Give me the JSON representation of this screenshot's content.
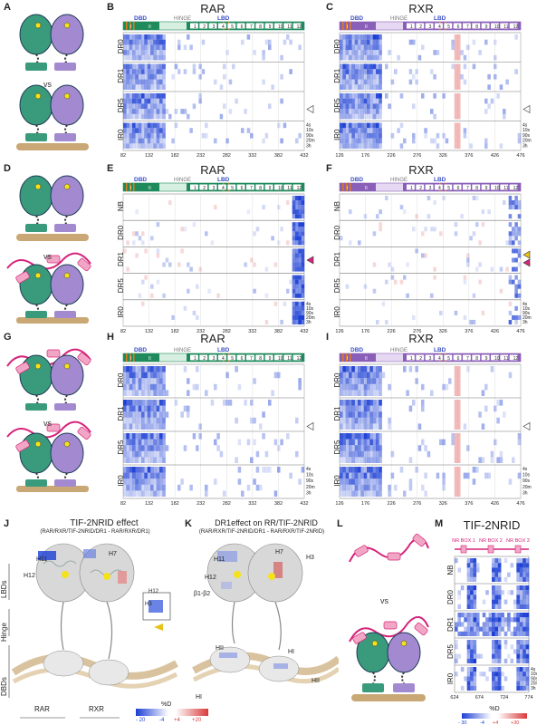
{
  "panel_letters": [
    "A",
    "B",
    "C",
    "D",
    "E",
    "F",
    "G",
    "H",
    "I",
    "J",
    "K",
    "L",
    "M"
  ],
  "vs_label": "vs",
  "rar_label": "RAR",
  "rxr_label": "RXR",
  "rare_label": "RARE",
  "domain_labels": {
    "dbd": "DBD",
    "hinge": "HINGE",
    "lbd": "LBD"
  },
  "rar_helices": [
    "I",
    "II",
    "1",
    "2",
    "3",
    "4",
    "5",
    "6",
    "7",
    "8",
    "9",
    "10",
    "11",
    "12"
  ],
  "rxr_helices": [
    "I",
    "II",
    "1",
    "2",
    "3",
    "4",
    "5",
    "6",
    "7",
    "8",
    "9",
    "10",
    "11",
    "12"
  ],
  "rows_B": [
    "DR0",
    "DR1",
    "DR5",
    "IR0"
  ],
  "rows_E": [
    "NB",
    "DR0",
    "DR1",
    "DR5",
    "IR0"
  ],
  "time_labels": [
    "4s",
    "10s",
    "90s",
    "20m",
    "3h"
  ],
  "rar_ticks": [
    "82",
    "132",
    "182",
    "232",
    "282",
    "332",
    "382",
    "432"
  ],
  "rxr_ticks": [
    "126",
    "176",
    "226",
    "276",
    "326",
    "376",
    "426",
    "476"
  ],
  "panel_titles": {
    "B": "RAR",
    "C": "RXR",
    "E": "RAR",
    "F": "RXR",
    "H": "RAR",
    "I": "RXR",
    "M": "TIF-2NRID"
  },
  "J": {
    "title": "TIF-2NRID effect",
    "subtitle": "(RAR/RXR/TIF-2NRID/DR1 - RAR/RXR/DR1)",
    "labels": {
      "h11": "H11",
      "h7": "H7",
      "h12": "H12",
      "h12b": "H12",
      "h3": "H3"
    },
    "side": [
      "LBDs",
      "Hinge",
      "DBDs"
    ],
    "bottom": [
      "RAR",
      "RXR"
    ]
  },
  "K": {
    "title": "DR1effect on RR/TIF-2NRID",
    "subtitle": "(RAR/RXR/TIF-2NRID/DR1 - RAR/RXR/TIF-2NRID)",
    "labels": {
      "h11": "H11",
      "h7": "H7",
      "h3": "H3",
      "h12": "H12",
      "b12": "β1-β2",
      "hii": "HII",
      "hi": "HI",
      "hi2": "HI",
      "hii2": "HII"
    }
  },
  "scale_JK": {
    "title": "%D",
    "ticks": [
      "- 20",
      "-4",
      "+4",
      "+20"
    ]
  },
  "M": {
    "boxes": [
      "NR BOX 1",
      "NR BOX 2",
      "NR BOX 3"
    ],
    "rows": [
      "NB",
      "DR0",
      "DR1",
      "DR5",
      "IR0"
    ],
    "ticks": [
      "624",
      "674",
      "724",
      "774"
    ],
    "scale_title": "%D",
    "scale_ticks": [
      "- 30",
      "-4",
      "+4",
      "+30"
    ]
  },
  "colors": {
    "rar": "#3a9a7c",
    "rxr": "#a38ad0",
    "tif": "#d6247a",
    "tif_box": "#f2a6c6",
    "dna": "#c9a875",
    "blue": "#1c3fd4",
    "red": "#d93a3a"
  }
}
